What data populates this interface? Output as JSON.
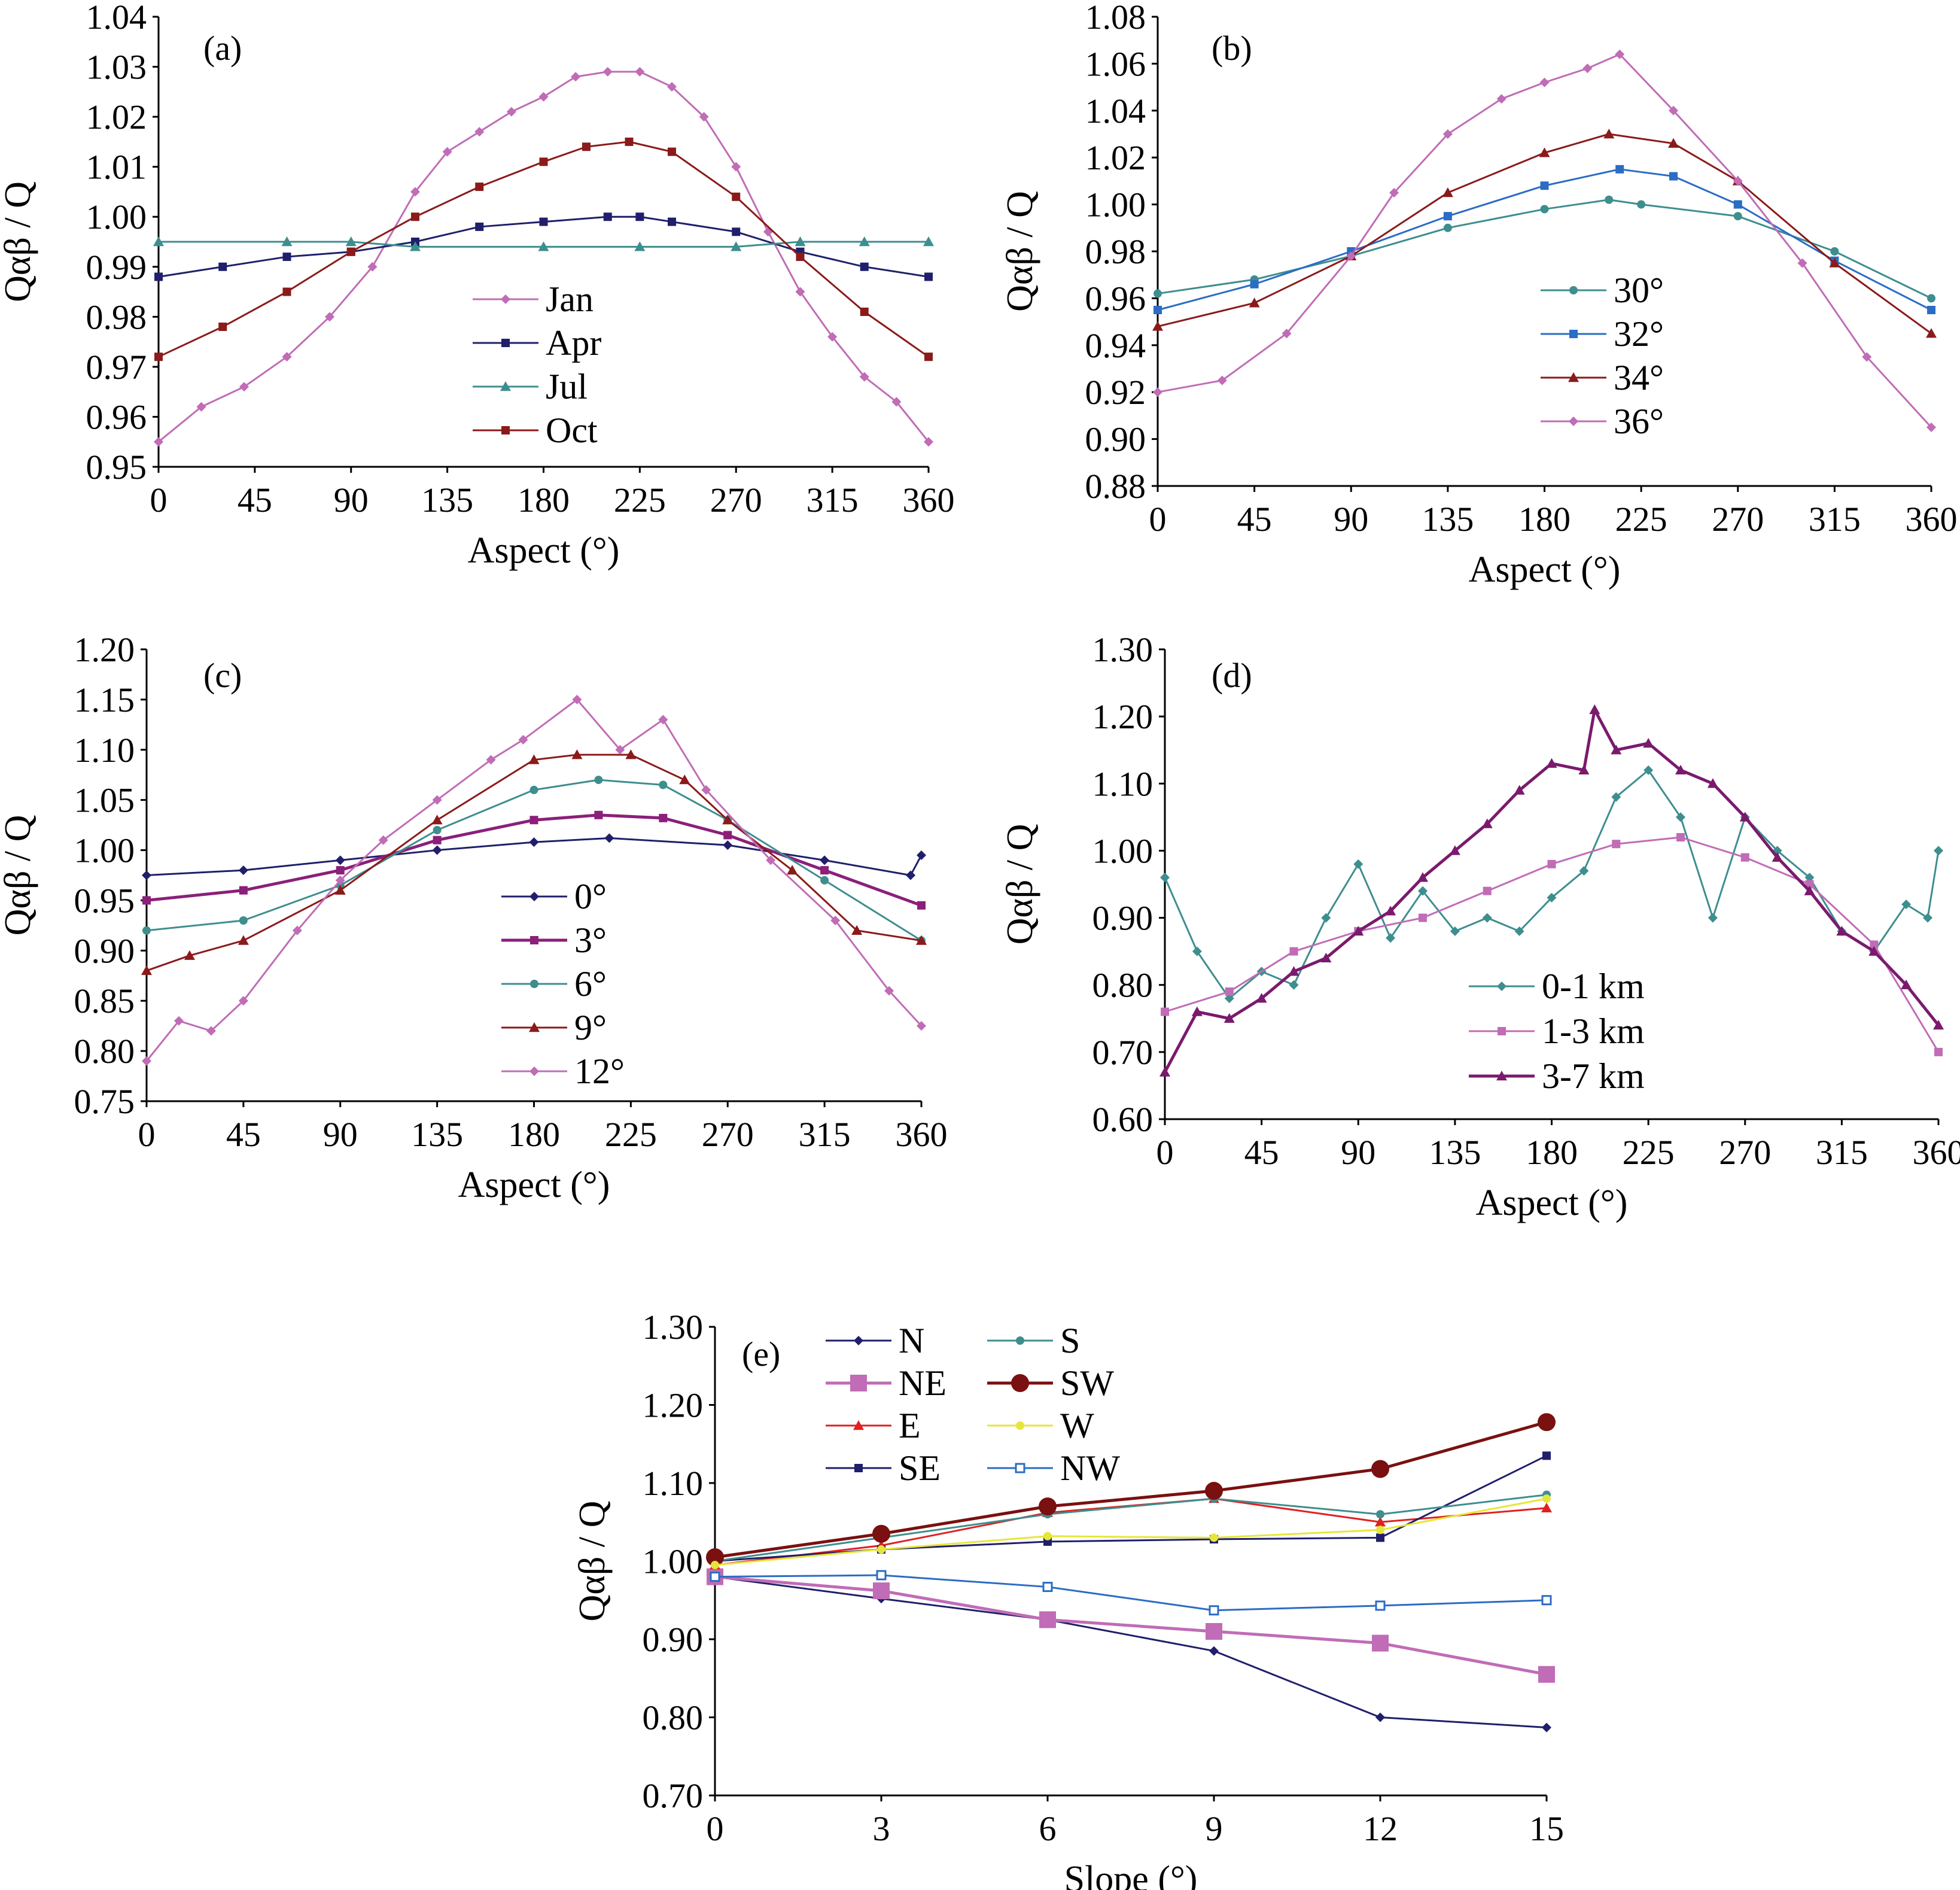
{
  "chart_data": [
    {
      "panel_label": "(a)",
      "type": "line",
      "xlabel": "Aspect (°)",
      "ylabel": "Qαβ / Q",
      "xlim": [
        0,
        360
      ],
      "ylim": [
        0.95,
        1.04
      ],
      "xticks": [
        "0",
        "45",
        "90",
        "135",
        "180",
        "225",
        "270",
        "315",
        "360"
      ],
      "yticks": [
        "0.95",
        "0.96",
        "0.97",
        "0.98",
        "0.99",
        "1.00",
        "1.01",
        "1.02",
        "1.03",
        "1.04"
      ],
      "legend_position": "center",
      "series": [
        {
          "name": "Jan",
          "color": "#c06cb6",
          "marker": "diamond",
          "x": [
            0,
            20,
            40,
            60,
            80,
            100,
            120,
            135,
            150,
            165,
            180,
            195,
            210,
            225,
            240,
            255,
            270,
            285,
            300,
            315,
            330,
            345,
            360
          ],
          "values": [
            0.955,
            0.962,
            0.966,
            0.972,
            0.98,
            0.99,
            1.005,
            1.013,
            1.017,
            1.021,
            1.024,
            1.028,
            1.029,
            1.029,
            1.026,
            1.02,
            1.01,
            0.997,
            0.985,
            0.976,
            0.968,
            0.963,
            0.955
          ]
        },
        {
          "name": "Apr",
          "color": "#1f1f6b",
          "marker": "square",
          "x": [
            0,
            30,
            60,
            90,
            120,
            150,
            180,
            210,
            225,
            240,
            270,
            300,
            330,
            360
          ],
          "values": [
            0.988,
            0.99,
            0.992,
            0.993,
            0.995,
            0.998,
            0.999,
            1.0,
            1.0,
            0.999,
            0.997,
            0.993,
            0.99,
            0.988
          ]
        },
        {
          "name": "Jul",
          "color": "#3e8e8e",
          "marker": "triangle",
          "x": [
            0,
            60,
            90,
            120,
            180,
            225,
            270,
            300,
            330,
            360
          ],
          "values": [
            0.995,
            0.995,
            0.995,
            0.994,
            0.994,
            0.994,
            0.994,
            0.995,
            0.995,
            0.995
          ]
        },
        {
          "name": "Oct",
          "color": "#8b1a1a",
          "marker": "square",
          "x": [
            0,
            30,
            60,
            90,
            120,
            150,
            180,
            200,
            220,
            240,
            270,
            300,
            330,
            360
          ],
          "values": [
            0.972,
            0.978,
            0.985,
            0.993,
            1.0,
            1.006,
            1.011,
            1.014,
            1.015,
            1.013,
            1.004,
            0.992,
            0.981,
            0.972
          ]
        }
      ]
    },
    {
      "panel_label": "(b)",
      "type": "line",
      "xlabel": "Aspect (°)",
      "ylabel": "Qαβ / Q",
      "xlim": [
        0,
        360
      ],
      "ylim": [
        0.88,
        1.08
      ],
      "xticks": [
        "0",
        "45",
        "90",
        "135",
        "180",
        "225",
        "270",
        "315",
        "360"
      ],
      "yticks": [
        "0.88",
        "0.90",
        "0.92",
        "0.94",
        "0.96",
        "0.98",
        "1.00",
        "1.02",
        "1.04",
        "1.06",
        "1.08"
      ],
      "legend_position": "center-right",
      "series": [
        {
          "name": "30°",
          "color": "#3e8e8e",
          "marker": "circle",
          "x": [
            0,
            45,
            90,
            135,
            180,
            210,
            225,
            270,
            315,
            360
          ],
          "values": [
            0.962,
            0.968,
            0.978,
            0.99,
            0.998,
            1.002,
            1.0,
            0.995,
            0.98,
            0.96
          ]
        },
        {
          "name": "32°",
          "color": "#2b6cc4",
          "marker": "square",
          "x": [
            0,
            45,
            90,
            135,
            180,
            215,
            240,
            270,
            315,
            360
          ],
          "values": [
            0.955,
            0.966,
            0.98,
            0.995,
            1.008,
            1.015,
            1.012,
            1.0,
            0.976,
            0.955
          ]
        },
        {
          "name": "34°",
          "color": "#8b1a1a",
          "marker": "triangle",
          "x": [
            0,
            45,
            90,
            135,
            180,
            210,
            240,
            270,
            315,
            360
          ],
          "values": [
            0.948,
            0.958,
            0.978,
            1.005,
            1.022,
            1.03,
            1.026,
            1.01,
            0.975,
            0.945
          ]
        },
        {
          "name": "36°",
          "color": "#c06cb6",
          "marker": "diamond",
          "x": [
            0,
            30,
            60,
            90,
            110,
            135,
            160,
            180,
            200,
            215,
            240,
            270,
            300,
            330,
            360
          ],
          "values": [
            0.92,
            0.925,
            0.945,
            0.978,
            1.005,
            1.03,
            1.045,
            1.052,
            1.058,
            1.064,
            1.04,
            1.01,
            0.975,
            0.935,
            0.905
          ]
        }
      ]
    },
    {
      "panel_label": "(c)",
      "type": "line",
      "xlabel": "Aspect (°)",
      "ylabel": "Qαβ / Q",
      "xlim": [
        0,
        360
      ],
      "ylim": [
        0.75,
        1.2
      ],
      "xticks": [
        "0",
        "45",
        "90",
        "135",
        "180",
        "225",
        "270",
        "315",
        "360"
      ],
      "yticks": [
        "0.75",
        "0.80",
        "0.85",
        "0.90",
        "0.95",
        "1.00",
        "1.05",
        "1.10",
        "1.15",
        "1.20"
      ],
      "legend_position": "center",
      "series": [
        {
          "name": "0°",
          "color": "#1f1f6b",
          "marker": "diamond",
          "x": [
            0,
            45,
            90,
            135,
            180,
            215,
            270,
            315,
            355,
            360
          ],
          "values": [
            0.975,
            0.98,
            0.99,
            1.0,
            1.008,
            1.012,
            1.005,
            0.99,
            0.975,
            0.995
          ]
        },
        {
          "name": "3°",
          "color": "#8b1f7a",
          "marker": "square",
          "x": [
            0,
            45,
            90,
            135,
            180,
            210,
            240,
            270,
            315,
            360
          ],
          "values": [
            0.95,
            0.96,
            0.98,
            1.01,
            1.03,
            1.035,
            1.032,
            1.015,
            0.98,
            0.945
          ]
        },
        {
          "name": "6°",
          "color": "#3e8e8e",
          "marker": "circle",
          "x": [
            0,
            45,
            90,
            135,
            180,
            210,
            240,
            270,
            315,
            360
          ],
          "values": [
            0.92,
            0.93,
            0.965,
            1.02,
            1.06,
            1.07,
            1.065,
            1.03,
            0.97,
            0.91
          ]
        },
        {
          "name": "9°",
          "color": "#8b1a1a",
          "marker": "triangle",
          "x": [
            0,
            20,
            45,
            90,
            135,
            180,
            200,
            225,
            250,
            270,
            300,
            330,
            360
          ],
          "values": [
            0.88,
            0.895,
            0.91,
            0.96,
            1.03,
            1.09,
            1.095,
            1.095,
            1.07,
            1.03,
            0.98,
            0.92,
            0.91
          ]
        },
        {
          "name": "12°",
          "color": "#c06cb6",
          "marker": "diamond",
          "x": [
            0,
            15,
            30,
            45,
            70,
            90,
            110,
            135,
            160,
            175,
            200,
            220,
            240,
            260,
            290,
            320,
            345,
            360
          ],
          "values": [
            0.79,
            0.83,
            0.82,
            0.85,
            0.92,
            0.97,
            1.01,
            1.05,
            1.09,
            1.11,
            1.15,
            1.1,
            1.13,
            1.06,
            0.99,
            0.93,
            0.86,
            0.825
          ]
        }
      ]
    },
    {
      "panel_label": "(d)",
      "type": "line",
      "xlabel": "Aspect (°)",
      "ylabel": "Qαβ / Q",
      "xlim": [
        0,
        360
      ],
      "ylim": [
        0.6,
        1.3
      ],
      "xticks": [
        "0",
        "45",
        "90",
        "135",
        "180",
        "225",
        "270",
        "315",
        "360"
      ],
      "yticks": [
        "0.60",
        "0.70",
        "0.80",
        "0.90",
        "1.00",
        "1.10",
        "1.20",
        "1.30"
      ],
      "legend_position": "bottom-center",
      "series": [
        {
          "name": "0-1 km",
          "color": "#3e8e8e",
          "marker": "diamond",
          "x": [
            0,
            15,
            30,
            45,
            60,
            75,
            90,
            105,
            120,
            135,
            150,
            165,
            180,
            195,
            210,
            225,
            240,
            255,
            270,
            285,
            300,
            315,
            330,
            345,
            355,
            360
          ],
          "values": [
            0.96,
            0.85,
            0.78,
            0.82,
            0.8,
            0.9,
            0.98,
            0.87,
            0.94,
            0.88,
            0.9,
            0.88,
            0.93,
            0.97,
            1.08,
            1.12,
            1.05,
            0.9,
            1.05,
            1.0,
            0.96,
            0.88,
            0.85,
            0.92,
            0.9,
            1.0
          ]
        },
        {
          "name": "1-3 km",
          "color": "#c06cb6",
          "marker": "square",
          "x": [
            0,
            30,
            60,
            90,
            120,
            150,
            180,
            210,
            240,
            270,
            300,
            330,
            360
          ],
          "values": [
            0.76,
            0.79,
            0.85,
            0.88,
            0.9,
            0.94,
            0.98,
            1.01,
            1.02,
            0.99,
            0.95,
            0.86,
            0.7
          ]
        },
        {
          "name": "3-7 km",
          "color": "#7a1a6e",
          "marker": "triangle",
          "x": [
            0,
            15,
            30,
            45,
            60,
            75,
            90,
            105,
            120,
            135,
            150,
            165,
            180,
            195,
            200,
            210,
            225,
            240,
            255,
            270,
            285,
            300,
            315,
            330,
            345,
            360
          ],
          "values": [
            0.67,
            0.76,
            0.75,
            0.78,
            0.82,
            0.84,
            0.88,
            0.91,
            0.96,
            1.0,
            1.04,
            1.09,
            1.13,
            1.12,
            1.21,
            1.15,
            1.16,
            1.12,
            1.1,
            1.05,
            0.99,
            0.94,
            0.88,
            0.85,
            0.8,
            0.74
          ]
        }
      ]
    },
    {
      "panel_label": "(e)",
      "type": "line",
      "xlabel": "Slope (°)",
      "ylabel": "Qαβ / Q",
      "xlim": [
        0,
        15
      ],
      "ylim": [
        0.7,
        1.3
      ],
      "xticks": [
        "0",
        "3",
        "6",
        "9",
        "12",
        "15"
      ],
      "yticks": [
        "0.70",
        "0.80",
        "0.90",
        "1.00",
        "1.10",
        "1.20",
        "1.30"
      ],
      "legend_position": "top",
      "categories": [
        0,
        3,
        6,
        9,
        12,
        15
      ],
      "series": [
        {
          "name": "N",
          "color": "#1f1f6b",
          "marker": "diamond",
          "values": [
            0.98,
            0.952,
            0.925,
            0.885,
            0.8,
            0.787
          ]
        },
        {
          "name": "NE",
          "color": "#c06cb6",
          "marker": "square-big",
          "values": [
            0.98,
            0.962,
            0.925,
            0.91,
            0.895,
            0.855
          ]
        },
        {
          "name": "E",
          "color": "#e02020",
          "marker": "triangle",
          "values": [
            0.995,
            1.02,
            1.062,
            1.08,
            1.05,
            1.068
          ]
        },
        {
          "name": "SE",
          "color": "#1f1f6b",
          "marker": "square",
          "values": [
            1.0,
            1.015,
            1.025,
            1.028,
            1.03,
            1.135
          ]
        },
        {
          "name": "S",
          "color": "#3e8e8e",
          "marker": "circle",
          "values": [
            1.0,
            1.03,
            1.06,
            1.08,
            1.06,
            1.085
          ]
        },
        {
          "name": "SW",
          "color": "#7a1010",
          "marker": "circle-big",
          "values": [
            1.005,
            1.035,
            1.07,
            1.09,
            1.118,
            1.178
          ]
        },
        {
          "name": "W",
          "color": "#e6e63a",
          "marker": "circle",
          "values": [
            0.995,
            1.015,
            1.032,
            1.03,
            1.04,
            1.08
          ]
        },
        {
          "name": "NW",
          "color": "#2b6cc4",
          "marker": "square-open",
          "values": [
            0.98,
            0.982,
            0.967,
            0.937,
            0.943,
            0.95
          ]
        }
      ]
    }
  ]
}
